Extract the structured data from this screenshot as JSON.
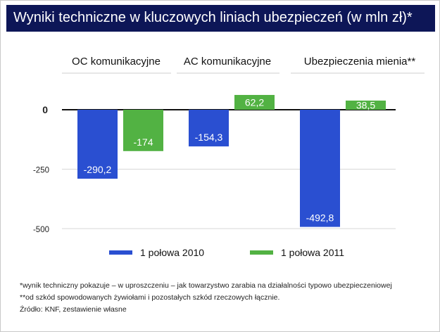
{
  "title": "Wyniki techniczne w kluczowych liniach ubezpieczeń (w mln zł)*",
  "chart_data": {
    "type": "bar",
    "categories": [
      "OC komunikacyjne",
      "AC komunikacyjne",
      "Ubezpieczenia mienia**"
    ],
    "series": [
      {
        "name": "1 połowa 2010",
        "color": "#2a4fd1",
        "values": [
          -290.2,
          -154.3,
          -492.8
        ],
        "labels": [
          "-290,2",
          "-154,3",
          "-492,8"
        ]
      },
      {
        "name": "1 połowa 2011",
        "color": "#52b243",
        "values": [
          -174,
          62.2,
          38.5
        ],
        "labels": [
          "-174",
          "62,2",
          "38,5"
        ]
      }
    ],
    "yticks": [
      0,
      -250,
      -500
    ],
    "ytick_labels": [
      "0",
      "-250",
      "-500"
    ],
    "ylim": [
      -500,
      70
    ],
    "grid": true,
    "legend": "bottom"
  },
  "footnotes": [
    "*wynik techniczny pokazuje – w uproszczeniu – jak towarzystwo zarabia na działalności typowo ubezpieczeniowej",
    "**od szkód spowodowanych żywiołami i pozostałych szkód rzeczowych łącznie.",
    "Źródło: KNF, zestawienie własne"
  ]
}
